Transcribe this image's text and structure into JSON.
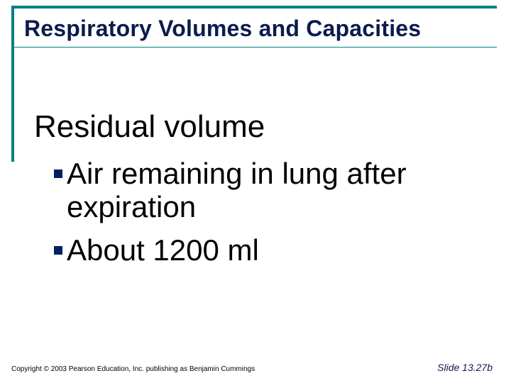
{
  "slide": {
    "title": "Respiratory Volumes and Capacities",
    "heading": "Residual volume",
    "bullets": [
      "Air remaining in lung after expiration",
      "About 1200 ml"
    ],
    "copyright": "Copyright © 2003 Pearson Education, Inc. publishing as Benjamin Cummings",
    "slidenum": "Slide 13.27b"
  },
  "style": {
    "accent_color": "#008080",
    "title_color": "#0b1b4d",
    "bullet_color": "#002060",
    "background_color": "#ffffff",
    "title_fontsize": 32,
    "heading_fontsize": 44,
    "bullet_fontsize": 42,
    "copyright_fontsize": 10,
    "slidenum_fontsize": 14
  }
}
